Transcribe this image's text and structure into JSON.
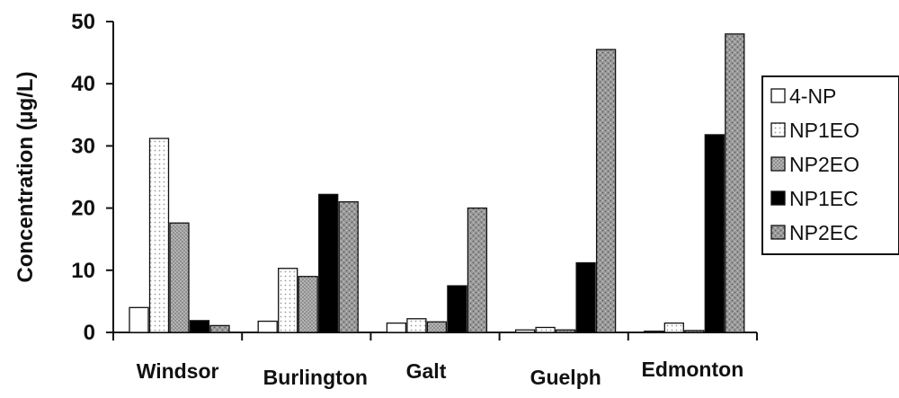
{
  "chart_data": {
    "type": "bar",
    "title": "",
    "xlabel": "",
    "ylabel": "Concentration (µg/L)",
    "ylim": [
      0,
      50
    ],
    "yticks": [
      0,
      10,
      20,
      30,
      40,
      50
    ],
    "grid": false,
    "legend_position": "right",
    "categories": [
      "Windsor",
      "Burlington",
      "Galt",
      "Guelph",
      "Edmonton"
    ],
    "series": [
      {
        "name": "4-NP",
        "values": [
          4,
          1.8,
          1.5,
          0.4,
          0.2
        ],
        "color": "#ffffff",
        "pattern": "white"
      },
      {
        "name": "NP1EO",
        "values": [
          31.2,
          10.3,
          2.2,
          0.8,
          1.5
        ],
        "color": "#f2f2f2",
        "pattern": "dotted"
      },
      {
        "name": "NP2EO",
        "values": [
          17.6,
          9,
          1.7,
          0.4,
          0.3
        ],
        "color": "#9a9a9a",
        "pattern": "gray"
      },
      {
        "name": "NP1EC",
        "values": [
          1.9,
          22.2,
          7.5,
          11.2,
          31.8
        ],
        "color": "#000000",
        "pattern": "black"
      },
      {
        "name": "NP2EC",
        "values": [
          1.1,
          21,
          20,
          45.5,
          48
        ],
        "color": "#a0a0a0",
        "pattern": "speckled"
      }
    ]
  }
}
